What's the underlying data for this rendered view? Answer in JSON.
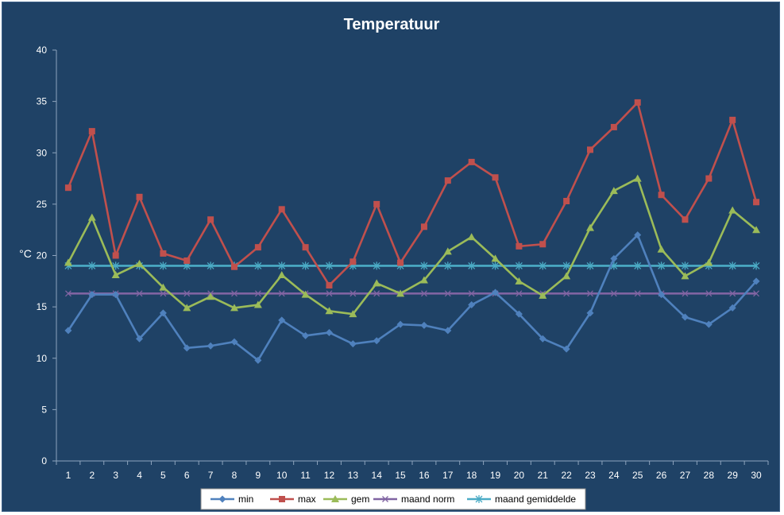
{
  "chart_data": {
    "type": "line",
    "title": "Temperatuur",
    "xlabel": "",
    "ylabel": "°C",
    "ylim": [
      0,
      40
    ],
    "yticks": [
      0,
      5,
      10,
      15,
      20,
      25,
      30,
      35,
      40
    ],
    "categories": [
      "1",
      "2",
      "3",
      "4",
      "5",
      "6",
      "7",
      "8",
      "9",
      "10",
      "11",
      "12",
      "13",
      "14",
      "15",
      "16",
      "17",
      "18",
      "19",
      "20",
      "21",
      "22",
      "23",
      "24",
      "25",
      "26",
      "27",
      "28",
      "29",
      "30"
    ],
    "grid": false,
    "legend_position": "bottom",
    "background": "#1f4266",
    "series": [
      {
        "name": "min",
        "color": "#4f81bd",
        "marker": "diamond",
        "values": [
          12.7,
          16.2,
          16.2,
          11.9,
          14.4,
          11.0,
          11.2,
          11.6,
          9.8,
          13.7,
          12.2,
          12.5,
          11.4,
          11.7,
          13.3,
          13.2,
          12.7,
          15.2,
          16.4,
          14.3,
          11.9,
          10.9,
          14.4,
          19.7,
          22.0,
          16.2,
          14.0,
          13.3,
          14.9,
          17.5
        ]
      },
      {
        "name": "max",
        "color": "#c0504d",
        "marker": "square",
        "values": [
          26.6,
          32.1,
          20.0,
          25.7,
          20.2,
          19.5,
          23.5,
          18.9,
          20.8,
          24.5,
          20.8,
          17.1,
          19.4,
          25.0,
          19.3,
          22.8,
          27.3,
          29.1,
          27.6,
          20.9,
          21.1,
          25.3,
          30.3,
          32.5,
          34.9,
          25.9,
          23.5,
          27.5,
          33.2,
          25.2
        ]
      },
      {
        "name": "gem",
        "color": "#9bbb59",
        "marker": "triangle",
        "values": [
          19.3,
          23.7,
          18.1,
          19.2,
          16.9,
          14.9,
          16.0,
          14.9,
          15.2,
          18.1,
          16.2,
          14.6,
          14.3,
          17.3,
          16.3,
          17.6,
          20.4,
          21.8,
          19.7,
          17.5,
          16.1,
          18.0,
          22.7,
          26.3,
          27.5,
          20.6,
          18.0,
          19.3,
          24.4,
          22.5
        ]
      },
      {
        "name": "maand norm",
        "color": "#8064a2",
        "marker": "x",
        "values": [
          16.3,
          16.3,
          16.3,
          16.3,
          16.3,
          16.3,
          16.3,
          16.3,
          16.3,
          16.3,
          16.3,
          16.3,
          16.3,
          16.3,
          16.3,
          16.3,
          16.3,
          16.3,
          16.3,
          16.3,
          16.3,
          16.3,
          16.3,
          16.3,
          16.3,
          16.3,
          16.3,
          16.3,
          16.3,
          16.3
        ]
      },
      {
        "name": "maand gemiddelde",
        "color": "#4bacc6",
        "marker": "star",
        "values": [
          19.0,
          19.0,
          19.0,
          19.0,
          19.0,
          19.0,
          19.0,
          19.0,
          19.0,
          19.0,
          19.0,
          19.0,
          19.0,
          19.0,
          19.0,
          19.0,
          19.0,
          19.0,
          19.0,
          19.0,
          19.0,
          19.0,
          19.0,
          19.0,
          19.0,
          19.0,
          19.0,
          19.0,
          19.0,
          19.0
        ]
      }
    ]
  }
}
